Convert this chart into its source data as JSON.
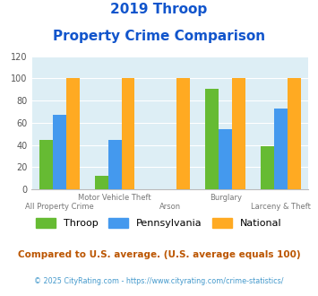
{
  "title_line1": "2019 Throop",
  "title_line2": "Property Crime Comparison",
  "categories": [
    "All Property Crime",
    "Motor Vehicle Theft",
    "Arson",
    "Burglary",
    "Larceny & Theft"
  ],
  "throop": [
    45,
    12,
    0,
    91,
    39
  ],
  "pennsylvania": [
    67,
    45,
    0,
    54,
    73
  ],
  "national": [
    100,
    100,
    100,
    100,
    100
  ],
  "throop_color": "#66bb33",
  "pennsylvania_color": "#4499ee",
  "national_color": "#ffaa22",
  "bg_color": "#ddeef5",
  "title_color": "#1155cc",
  "ylim": [
    0,
    120
  ],
  "yticks": [
    0,
    20,
    40,
    60,
    80,
    100,
    120
  ],
  "footnote1": "Compared to U.S. average. (U.S. average equals 100)",
  "footnote2": "© 2025 CityRating.com - https://www.cityrating.com/crime-statistics/",
  "footnote1_color": "#bb5500",
  "footnote2_color": "#4499cc",
  "top_labels": {
    "1": "Motor Vehicle Theft",
    "3": "Burglary"
  },
  "bot_labels": {
    "0": "All Property Crime",
    "2": "Arson",
    "4": "Larceny & Theft"
  }
}
